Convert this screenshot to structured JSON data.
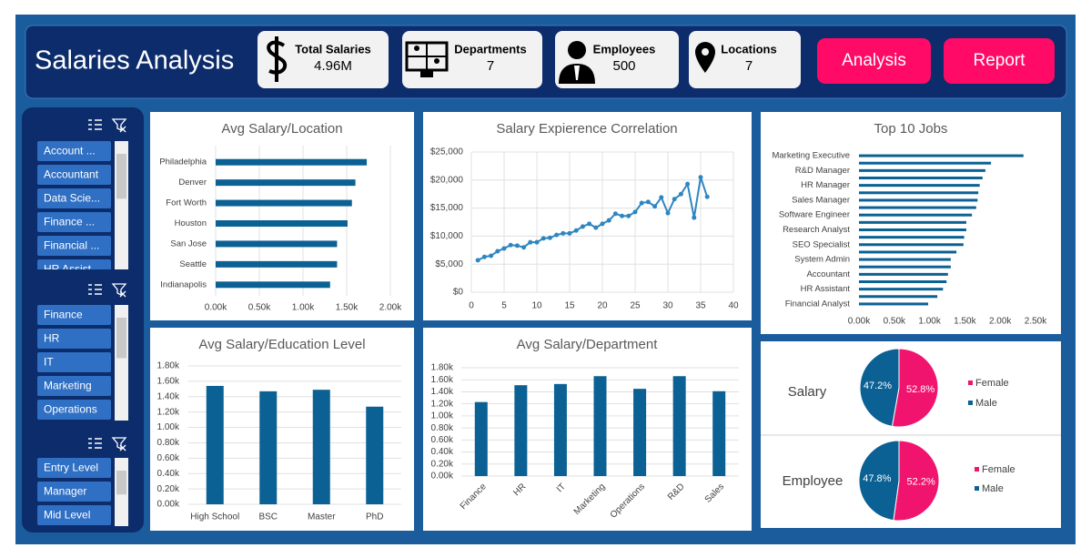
{
  "header": {
    "title": "Salaries Analysis",
    "kpis": [
      {
        "label": "Total Salaries",
        "value": "4.96M"
      },
      {
        "label": "Departments",
        "value": 7
      },
      {
        "label": "Employees",
        "value": 500
      },
      {
        "label": "Locations",
        "value": 7
      }
    ],
    "buttons": [
      "Analysis",
      "Report"
    ]
  },
  "slicers": [
    {
      "items": [
        "Account ...",
        "Accountant",
        "Data Scie...",
        "Finance ...",
        "Financial ...",
        "HR Assist..."
      ]
    },
    {
      "items": [
        "Finance",
        "HR",
        "IT",
        "Marketing",
        "Operations"
      ]
    },
    {
      "items": [
        "Entry Level",
        "Manager",
        "Mid Level"
      ]
    }
  ],
  "chart_data": [
    {
      "type": "barh",
      "title": "Avg Salary/Location",
      "color": "#0b6194",
      "grid": true,
      "categories": [
        "Philadelphia",
        "Denver",
        "Fort Worth",
        "Houston",
        "San Jose",
        "Seattle",
        "Indianapolis"
      ],
      "values": [
        1730,
        1600,
        1560,
        1510,
        1390,
        1390,
        1310
      ],
      "xlim": [
        0,
        2000
      ],
      "xticks": [
        {
          "value": 0,
          "label": "0.00k"
        },
        {
          "value": 500,
          "label": "0.50k"
        },
        {
          "value": 1000,
          "label": "1.00k"
        },
        {
          "value": 1500,
          "label": "1.50k"
        },
        {
          "value": 2000,
          "label": "2.00k"
        }
      ]
    },
    {
      "type": "line",
      "title": "Salary Expierence Correlation",
      "color": "#2e86c1",
      "grid": true,
      "x": [
        1,
        2,
        3,
        4,
        5,
        6,
        7,
        8,
        9,
        10,
        11,
        12,
        13,
        14,
        15,
        16,
        17,
        18,
        19,
        20,
        21,
        22,
        23,
        24,
        25,
        26,
        27,
        28,
        29,
        30,
        31,
        32,
        33,
        34,
        35,
        36
      ],
      "values": [
        5700,
        6300,
        6500,
        7300,
        7800,
        8400,
        8300,
        8000,
        8900,
        8900,
        9600,
        9700,
        10200,
        10500,
        10500,
        11000,
        11700,
        12200,
        11500,
        12200,
        12800,
        14000,
        13600,
        13600,
        14300,
        15900,
        16100,
        15300,
        16900,
        14100,
        16600,
        17500,
        19300,
        13300,
        20500,
        17000
      ],
      "xlim": [
        0,
        40
      ],
      "xticks": [
        0,
        5,
        10,
        15,
        20,
        25,
        30,
        35,
        40
      ],
      "ylim": [
        0,
        25000
      ],
      "yticks": [
        {
          "value": 0,
          "label": "$0"
        },
        {
          "value": 5000,
          "label": "$5,000"
        },
        {
          "value": 10000,
          "label": "$10,000"
        },
        {
          "value": 15000,
          "label": "$15,000"
        },
        {
          "value": 20000,
          "label": "$20,000"
        },
        {
          "value": 25000,
          "label": "$25,000"
        }
      ]
    },
    {
      "type": "barh",
      "title": "Top 10 Jobs",
      "color": "#0b6194",
      "grid": false,
      "categories": [
        "Marketing Executive",
        null,
        "R&D Manager",
        null,
        "HR Manager",
        null,
        "Sales Manager",
        null,
        "Software Engineer",
        null,
        "Research Analyst",
        null,
        "SEO Specialist",
        null,
        "System Admin",
        null,
        "Accountant",
        null,
        "HR Assistant",
        null,
        "Financial Analyst"
      ],
      "values": [
        2330,
        1870,
        1790,
        1750,
        1710,
        1690,
        1680,
        1660,
        1600,
        1520,
        1520,
        1490,
        1480,
        1380,
        1300,
        1300,
        1260,
        1240,
        1190,
        1110,
        980
      ],
      "xlim": [
        0,
        2500
      ],
      "xticks": [
        {
          "value": 0,
          "label": "0.00k"
        },
        {
          "value": 500,
          "label": "0.50k"
        },
        {
          "value": 1000,
          "label": "1.00k"
        },
        {
          "value": 1500,
          "label": "1.50k"
        },
        {
          "value": 2000,
          "label": "2.00k"
        },
        {
          "value": 2500,
          "label": "2.50k"
        }
      ]
    },
    {
      "type": "bar",
      "title": "Avg Salary/Education Level",
      "color": "#0b6194",
      "grid": true,
      "categories": [
        "High School",
        "BSC",
        "Master",
        "PhD"
      ],
      "values": [
        1540,
        1470,
        1490,
        1270
      ],
      "ylim": [
        0,
        1800
      ],
      "yticks": [
        {
          "value": 0,
          "label": "0.00k"
        },
        {
          "value": 200,
          "label": "0.20k"
        },
        {
          "value": 400,
          "label": "0.40k"
        },
        {
          "value": 600,
          "label": "0.60k"
        },
        {
          "value": 800,
          "label": "0.80k"
        },
        {
          "value": 1000,
          "label": "1.00k"
        },
        {
          "value": 1200,
          "label": "1.20k"
        },
        {
          "value": 1400,
          "label": "1.40k"
        },
        {
          "value": 1600,
          "label": "1.60k"
        },
        {
          "value": 1800,
          "label": "1.80k"
        }
      ]
    },
    {
      "type": "bar",
      "title": "Avg Salary/Department",
      "color": "#0b6194",
      "grid": true,
      "rotate_labels": true,
      "categories": [
        "Finance",
        "HR",
        "IT",
        "Marketing",
        "Operations",
        "R&D",
        "Sales"
      ],
      "values": [
        1230,
        1510,
        1530,
        1660,
        1450,
        1660,
        1410
      ],
      "ylim": [
        0,
        1800
      ],
      "yticks": [
        {
          "value": 0,
          "label": "0.00k"
        },
        {
          "value": 200,
          "label": "0.20k"
        },
        {
          "value": 400,
          "label": "0.40k"
        },
        {
          "value": 600,
          "label": "0.60k"
        },
        {
          "value": 800,
          "label": "0.80k"
        },
        {
          "value": 1000,
          "label": "1.00k"
        },
        {
          "value": 1200,
          "label": "1.20k"
        },
        {
          "value": 1400,
          "label": "1.40k"
        },
        {
          "value": 1600,
          "label": "1.60k"
        },
        {
          "value": 1800,
          "label": "1.80k"
        }
      ]
    },
    {
      "type": "pie",
      "title": "Salary",
      "categories": [
        "Female",
        "Male"
      ],
      "values": [
        52.8,
        47.2
      ],
      "value_labels": [
        "52.8%",
        "47.2%"
      ],
      "colors": [
        "#f0146e",
        "#0b6194"
      ]
    },
    {
      "type": "pie",
      "title": "Employee",
      "categories": [
        "Female",
        "Male"
      ],
      "values": [
        52.2,
        47.8
      ],
      "value_labels": [
        "52.2%",
        "47.8%"
      ],
      "colors": [
        "#f0146e",
        "#0b6194"
      ]
    }
  ]
}
